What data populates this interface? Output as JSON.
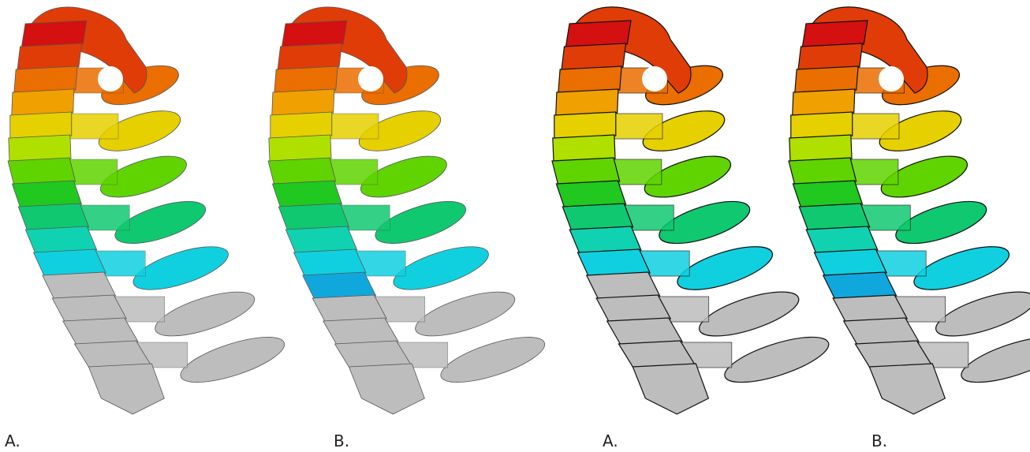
{
  "panels": [
    {
      "label": "A."
    },
    {
      "label": "B."
    },
    {
      "label": "A."
    },
    {
      "label": "B."
    }
  ]
}
